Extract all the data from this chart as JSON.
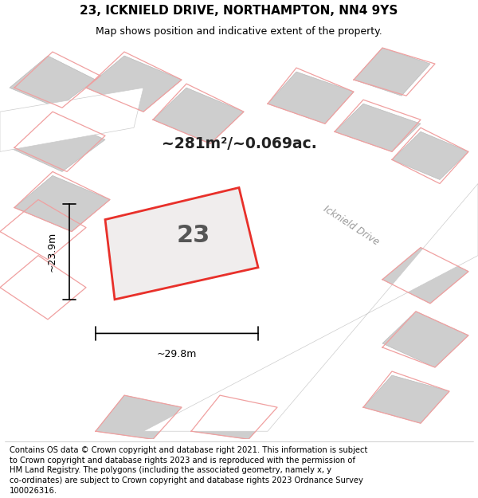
{
  "title_line1": "23, ICKNIELD DRIVE, NORTHAMPTON, NN4 9YS",
  "title_line2": "Map shows position and indicative extent of the property.",
  "footer_lines": [
    "Contains OS data © Crown copyright and database right 2021. This information is subject",
    "to Crown copyright and database rights 2023 and is reproduced with the permission of",
    "HM Land Registry. The polygons (including the associated geometry, namely x, y",
    "co-ordinates) are subject to Crown copyright and database rights 2023 Ordnance Survey",
    "100026316."
  ],
  "area_text": "~281m²/~0.069ac.",
  "plot_number": "23",
  "dim_width": "~29.8m",
  "dim_height": "~23.9m",
  "map_bg_color": "#dcdcdc",
  "plot_fill": "#f0eded",
  "plot_edge": "#e8302a",
  "road_color": "#ffffff",
  "pink_line_color": "#f0a0a0",
  "building_fill": "#cecece",
  "building_edge": "#bbbbbb",
  "title_fontsize": 11,
  "subtitle_fontsize": 9,
  "footer_fontsize": 7.2,
  "road_label": "Icknield Drive",
  "road_label_rotation": -33
}
